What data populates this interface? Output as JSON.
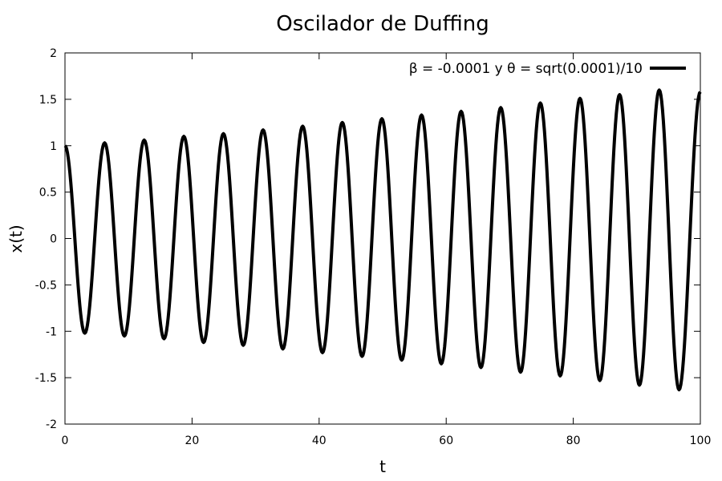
{
  "chart_data": {
    "type": "line",
    "title": "Oscilador de Duffing",
    "xlabel": "t",
    "ylabel": "x(t)",
    "xlim": [
      0,
      100
    ],
    "ylim": [
      -2,
      2
    ],
    "xticks": [
      0,
      20,
      40,
      60,
      80,
      100
    ],
    "xtick_labels": [
      "0",
      "20",
      "40",
      "60",
      "80",
      "100"
    ],
    "yticks": [
      -2,
      -1.5,
      -1,
      -0.5,
      0,
      0.5,
      1,
      1.5,
      2
    ],
    "ytick_labels": [
      "-2",
      "-1.5",
      "-1",
      "-0.5",
      "0",
      "0.5",
      "1",
      "1.5",
      "2"
    ],
    "grid": false,
    "legend_position": "top-right",
    "series": [
      {
        "name": "β = -0.0001 y θ = sqrt(0.0001)/10",
        "color": "#000000",
        "x": [
          0,
          3.12,
          6.24,
          9.35,
          12.47,
          15.59,
          18.71,
          21.82,
          24.94,
          28.06,
          31.18,
          34.29,
          37.41,
          40.53,
          43.65,
          46.76,
          49.88,
          53.0,
          56.12,
          59.23,
          62.35,
          65.47,
          68.59,
          71.71,
          74.82,
          77.94,
          81.06,
          84.18,
          87.29,
          90.41,
          93.53,
          96.65,
          100
        ],
        "y": [
          1.0,
          -1.02,
          1.03,
          -1.05,
          1.06,
          -1.08,
          1.1,
          -1.12,
          1.13,
          -1.15,
          1.17,
          -1.19,
          1.21,
          -1.23,
          1.25,
          -1.27,
          1.29,
          -1.31,
          1.33,
          -1.35,
          1.37,
          -1.39,
          1.41,
          -1.44,
          1.46,
          -1.48,
          1.51,
          -1.53,
          1.55,
          -1.58,
          1.6,
          -1.63,
          1.58
        ]
      }
    ]
  }
}
